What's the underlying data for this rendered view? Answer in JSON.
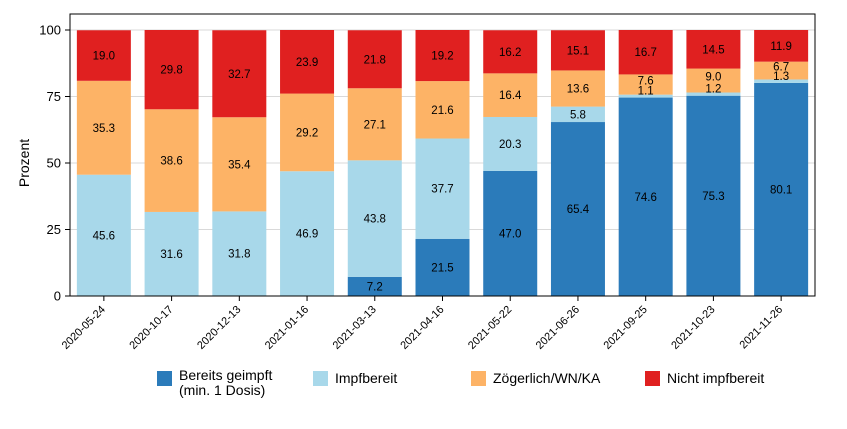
{
  "chart_data": {
    "type": "bar",
    "stacked": true,
    "title": "",
    "xlabel": "",
    "ylabel": "Prozent",
    "ylim": [
      0,
      100
    ],
    "yticks": [
      0,
      25,
      50,
      75,
      100
    ],
    "grid": true,
    "legend_position": "bottom",
    "categories": [
      "2020-05-24",
      "2020-10-17",
      "2020-12-13",
      "2021-01-16",
      "2021-03-13",
      "2021-04-16",
      "2021-05-22",
      "2021-06-26",
      "2021-09-25",
      "2021-10-23",
      "2021-11-26"
    ],
    "series": [
      {
        "name": "Bereits geimpft\n(min. 1 Dosis)",
        "legend_lines": [
          "Bereits geimpft",
          "(min. 1 Dosis)"
        ],
        "color": "#2b7bba",
        "values": [
          0,
          0,
          0,
          0,
          7.2,
          21.5,
          47.0,
          65.4,
          74.6,
          75.3,
          80.1
        ],
        "labels": [
          "",
          "",
          "",
          "",
          "7.2",
          "21.5",
          "47.0",
          "65.4",
          "74.6",
          "75.3",
          "80.1"
        ]
      },
      {
        "name": "Impfbereit",
        "legend_lines": [
          "Impfbereit"
        ],
        "color": "#a8d8ea",
        "values": [
          45.6,
          31.6,
          31.8,
          46.9,
          43.8,
          37.7,
          20.3,
          5.8,
          1.1,
          1.2,
          1.3
        ],
        "labels": [
          "45.6",
          "31.6",
          "31.8",
          "46.9",
          "43.8",
          "37.7",
          "20.3",
          "5.8",
          "1.1",
          "1.2",
          "1.3"
        ]
      },
      {
        "name": "Zögerlich/WN/KA",
        "legend_lines": [
          "Zögerlich/WN/KA"
        ],
        "color": "#fdb366",
        "values": [
          35.3,
          38.6,
          35.4,
          29.2,
          27.1,
          21.6,
          16.4,
          13.6,
          7.6,
          9.0,
          6.7
        ],
        "labels": [
          "35.3",
          "38.6",
          "35.4",
          "29.2",
          "27.1",
          "21.6",
          "16.4",
          "13.6",
          "7.6",
          "9.0",
          "6.7"
        ]
      },
      {
        "name": "Nicht impfbereit",
        "legend_lines": [
          "Nicht impfbereit"
        ],
        "color": "#e02020",
        "values": [
          19.0,
          29.8,
          32.7,
          23.9,
          21.8,
          19.2,
          16.2,
          15.1,
          16.7,
          14.5,
          11.9
        ],
        "labels": [
          "19.0",
          "29.8",
          "32.7",
          "23.9",
          "21.8",
          "19.2",
          "16.2",
          "15.1",
          "16.7",
          "14.5",
          "11.9"
        ]
      }
    ]
  }
}
